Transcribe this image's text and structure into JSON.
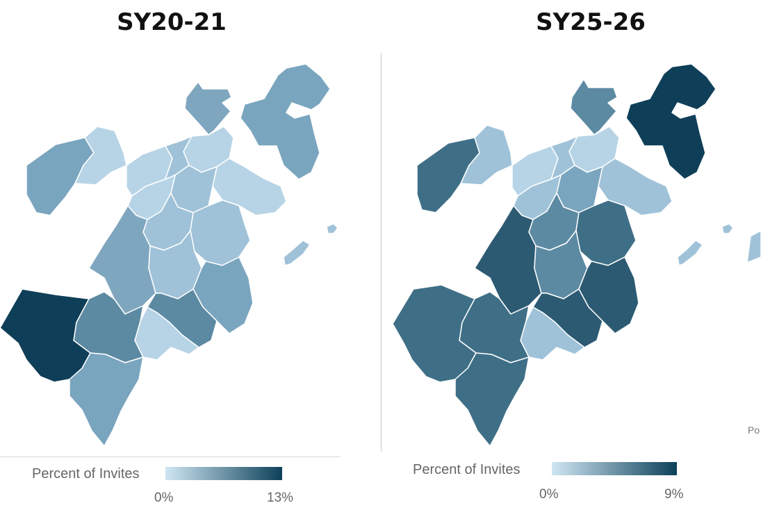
{
  "panels": [
    {
      "title": "SY20-21",
      "legend": {
        "title": "Percent of Invites",
        "min_label": "0%",
        "max_label": "13%",
        "color_low": "#cfe6f3",
        "color_high": "#0d4159"
      }
    },
    {
      "title": "SY25-26",
      "legend": {
        "title": "Percent of Invites",
        "min_label": "0%",
        "max_label": "9%",
        "color_low": "#cfe6f3",
        "color_high": "#0d4159"
      }
    }
  ],
  "watermark": "Po",
  "colors": {
    "border": "#ffffff",
    "lightest": "#b7d4e6",
    "light": "#9fc2d8",
    "medium": "#7aa5bf",
    "medium_dark": "#5d8aa3",
    "dark": "#3f6f87",
    "darker": "#2c5a73",
    "darkest": "#0f3f58"
  }
}
